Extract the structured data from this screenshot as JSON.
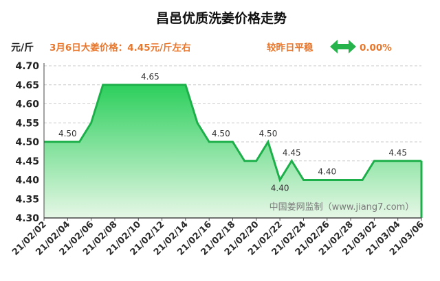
{
  "colors": {
    "line": "#1db04a",
    "fill_top": "#2ccf5c",
    "fill_bottom": "#e6f7e6",
    "accent_orange": "#e8762b",
    "arrow": "#27b34b",
    "grid": "#c8c8c8"
  },
  "header": {
    "price_note": "3月6日大姜价格：4.45元/斤左右",
    "change_label": "较昨日平稳",
    "change_value": "0.00%",
    "change_icon": "double-arrow-icon"
  },
  "watermark": "中国姜网监制（www.jiang7.com）",
  "chart_data": {
    "type": "area",
    "title": "昌邑优质洗姜价格走势",
    "ylabel": "元/斤",
    "xlabel": "",
    "ylim": [
      4.3,
      4.7
    ],
    "yticks": [
      "4.30",
      "4.35",
      "4.40",
      "4.45",
      "4.50",
      "4.55",
      "4.60",
      "4.65",
      "4.70"
    ],
    "grid": true,
    "legend": "none",
    "x": [
      "21/02/02",
      "21/02/03",
      "21/02/04",
      "21/02/05",
      "21/02/06",
      "21/02/07",
      "21/02/08",
      "21/02/09",
      "21/02/10",
      "21/02/11",
      "21/02/12",
      "21/02/13",
      "21/02/14",
      "21/02/15",
      "21/02/16",
      "21/02/17",
      "21/02/18",
      "21/02/19",
      "21/02/20",
      "21/02/21",
      "21/02/22",
      "21/02/23",
      "21/02/24",
      "21/02/25",
      "21/02/26",
      "21/02/27",
      "21/02/28",
      "21/03/01",
      "21/03/02",
      "21/03/03",
      "21/03/04",
      "21/03/05",
      "21/03/06"
    ],
    "values": [
      4.5,
      4.5,
      4.5,
      4.5,
      4.55,
      4.65,
      4.65,
      4.65,
      4.65,
      4.65,
      4.65,
      4.65,
      4.65,
      4.55,
      4.5,
      4.5,
      4.5,
      4.45,
      4.45,
      4.5,
      4.4,
      4.45,
      4.4,
      4.4,
      4.4,
      4.4,
      4.4,
      4.4,
      4.45,
      4.45,
      4.45,
      4.45,
      4.45
    ],
    "xtick_labels": [
      "21/02/02",
      "21/02/04",
      "21/02/06",
      "21/02/08",
      "21/02/10",
      "21/02/12",
      "21/02/14",
      "21/02/16",
      "21/02/18",
      "21/02/20",
      "21/02/22",
      "21/02/24",
      "21/02/26",
      "21/02/28",
      "21/03/02",
      "21/03/04",
      "21/03/06"
    ],
    "data_labels": [
      {
        "x": "21/02/04",
        "text": "4.50",
        "pos": "above"
      },
      {
        "x": "21/02/11",
        "text": "4.65",
        "pos": "above"
      },
      {
        "x": "21/02/17",
        "text": "4.50",
        "pos": "above"
      },
      {
        "x": "21/02/21",
        "text": "4.50",
        "pos": "above"
      },
      {
        "x": "21/02/22",
        "text": "4.40",
        "pos": "below"
      },
      {
        "x": "21/02/23",
        "text": "4.45",
        "pos": "above"
      },
      {
        "x": "21/02/26",
        "text": "4.40",
        "pos": "above"
      },
      {
        "x": "21/03/04",
        "text": "4.45",
        "pos": "above"
      }
    ]
  }
}
